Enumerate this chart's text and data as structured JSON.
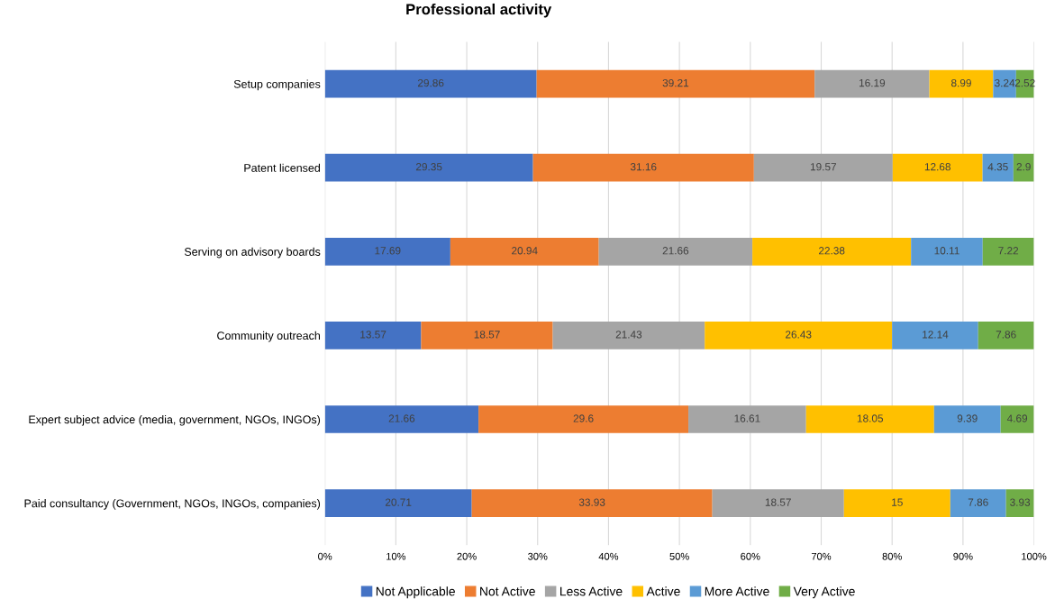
{
  "chart_data": {
    "type": "bar",
    "title": "Professional activity",
    "orientation": "horizontal",
    "stacked": true,
    "data_labels": true,
    "grid": "x",
    "legend": "bottom",
    "categories": [
      "Setup companies",
      "Patent licensed",
      "Serving on advisory boards",
      "Community outreach",
      "Expert subject advice (media, government, NGOs, INGOs)",
      "Paid consultancy (Government, NGOs, INGOs, companies)"
    ],
    "xlim": [
      0,
      100
    ],
    "xticks": [
      {
        "value": 0,
        "label": "0%"
      },
      {
        "value": 10,
        "label": "10%"
      },
      {
        "value": 20,
        "label": "20%"
      },
      {
        "value": 30,
        "label": "30%"
      },
      {
        "value": 40,
        "label": "40%"
      },
      {
        "value": 50,
        "label": "50%"
      },
      {
        "value": 60,
        "label": "60%"
      },
      {
        "value": 70,
        "label": "70%"
      },
      {
        "value": 80,
        "label": "80%"
      },
      {
        "value": 90,
        "label": "90%"
      },
      {
        "value": 100,
        "label": "100%"
      }
    ],
    "series": [
      {
        "name": "Not Applicable",
        "color": "#4472c4",
        "values": [
          29.86,
          29.35,
          17.69,
          13.57,
          21.66,
          20.71
        ]
      },
      {
        "name": "Not Active",
        "color": "#ed7d31",
        "values": [
          39.21,
          31.16,
          20.94,
          18.57,
          29.6,
          33.93
        ]
      },
      {
        "name": "Less Active",
        "color": "#a5a5a5",
        "values": [
          16.19,
          19.57,
          21.66,
          21.43,
          16.61,
          18.57
        ]
      },
      {
        "name": "Active",
        "color": "#ffc000",
        "values": [
          8.99,
          12.68,
          22.38,
          26.43,
          18.05,
          15
        ]
      },
      {
        "name": "More Active",
        "color": "#5b9bd5",
        "values": [
          3.24,
          4.35,
          10.11,
          12.14,
          9.39,
          7.86
        ]
      },
      {
        "name": "Very Active",
        "color": "#70ad47",
        "values": [
          2.52,
          2.9,
          7.22,
          7.86,
          4.69,
          3.93
        ]
      }
    ]
  }
}
